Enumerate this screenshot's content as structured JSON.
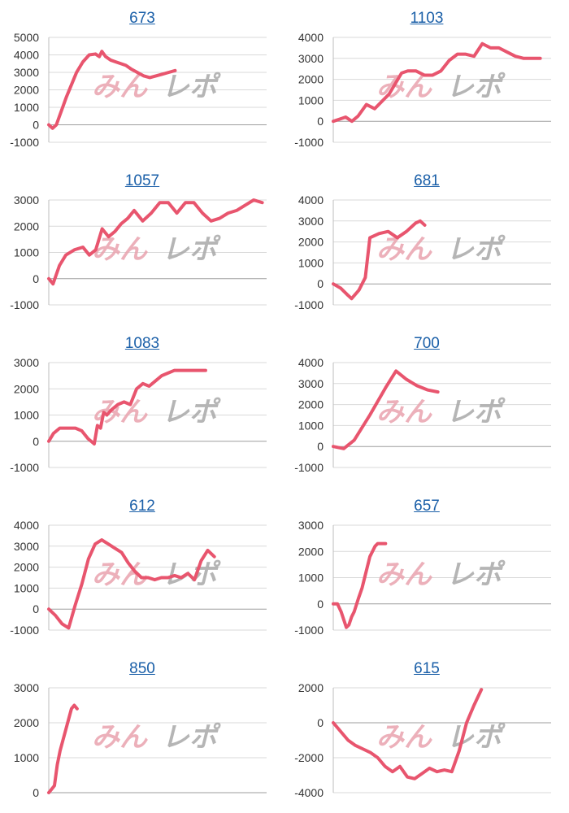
{
  "colors": {
    "line": "#e8556e",
    "grid": "#d9d9d9",
    "axis": "#bdbdbd",
    "title": "#1a5fa8",
    "watermark_pink": "#e9a3ae",
    "watermark_gray": "#a9a9a9"
  },
  "watermark": {
    "part1": "みん",
    "part2": "レポ"
  },
  "chart_data": [
    {
      "type": "line",
      "title": "673",
      "ylim": [
        -1000,
        5000
      ],
      "yticks": [
        5000,
        4000,
        3000,
        2000,
        1000,
        0,
        -1000
      ],
      "x": [
        0,
        3,
        6,
        10,
        14,
        18,
        22,
        27,
        32,
        37,
        40,
        42,
        45,
        49,
        53,
        57,
        61,
        65,
        70,
        75,
        80,
        85,
        90,
        95,
        100
      ],
      "values": [
        0,
        -200,
        0,
        800,
        1600,
        2300,
        3000,
        3600,
        4000,
        4050,
        3900,
        4200,
        3900,
        3700,
        3600,
        3500,
        3400,
        3200,
        3000,
        2800,
        2700,
        2800,
        2900,
        3000,
        3100
      ]
    },
    {
      "type": "line",
      "title": "1103",
      "ylim": [
        -1000,
        4000
      ],
      "yticks": [
        4000,
        3000,
        2000,
        1000,
        0,
        -1000
      ],
      "x": [
        0,
        3,
        6,
        9,
        12,
        16,
        20,
        24,
        27,
        30,
        33,
        36,
        40,
        44,
        48,
        52,
        56,
        60,
        64,
        68,
        72,
        76,
        80,
        84,
        88,
        92,
        96,
        100
      ],
      "values": [
        0,
        100,
        200,
        0,
        250,
        800,
        600,
        1000,
        1300,
        1800,
        2300,
        2400,
        2400,
        2200,
        2200,
        2400,
        2900,
        3200,
        3200,
        3100,
        3700,
        3500,
        3500,
        3300,
        3100,
        3000,
        3000,
        3000
      ]
    },
    {
      "type": "line",
      "title": "1057",
      "ylim": [
        -1000,
        3000
      ],
      "yticks": [
        3000,
        2000,
        1000,
        0,
        -1000
      ],
      "x": [
        0,
        2,
        5,
        8,
        12,
        16,
        19,
        22,
        25,
        28,
        31,
        34,
        37,
        40,
        44,
        48,
        52,
        56,
        60,
        64,
        68,
        72,
        76,
        80,
        84,
        88,
        92,
        96,
        100
      ],
      "values": [
        0,
        -200,
        500,
        900,
        1100,
        1200,
        900,
        1100,
        1900,
        1600,
        1800,
        2100,
        2300,
        2600,
        2200,
        2500,
        2900,
        2900,
        2500,
        2900,
        2900,
        2500,
        2200,
        2300,
        2500,
        2600,
        2800,
        3000,
        2900
      ]
    },
    {
      "type": "line",
      "title": "681",
      "ylim": [
        -1000,
        4000
      ],
      "yticks": [
        4000,
        3000,
        2000,
        1000,
        0,
        -1000
      ],
      "x": [
        0,
        8,
        15,
        20,
        28,
        35,
        40,
        50,
        60,
        70,
        80,
        90,
        95,
        100
      ],
      "values": [
        0,
        -200,
        -500,
        -700,
        -300,
        300,
        2200,
        2400,
        2500,
        2200,
        2500,
        2900,
        3000,
        2800
      ]
    },
    {
      "type": "line",
      "title": "1083",
      "ylim": [
        -1000,
        3000
      ],
      "yticks": [
        3000,
        2000,
        1000,
        0,
        -1000
      ],
      "x": [
        0,
        3,
        7,
        12,
        17,
        21,
        25,
        29,
        31,
        33,
        35,
        37,
        40,
        44,
        48,
        52,
        56,
        60,
        64,
        68,
        72,
        76,
        80,
        84,
        88,
        92,
        96,
        100
      ],
      "values": [
        0,
        300,
        500,
        500,
        500,
        400,
        100,
        -100,
        600,
        500,
        1100,
        1000,
        1200,
        1400,
        1500,
        1400,
        2000,
        2200,
        2100,
        2300,
        2500,
        2600,
        2700,
        2700,
        2700,
        2700,
        2700,
        2700
      ]
    },
    {
      "type": "line",
      "title": "700",
      "ylim": [
        -1000,
        4000
      ],
      "yticks": [
        4000,
        3000,
        2000,
        1000,
        0,
        -1000
      ],
      "x": [
        0,
        10,
        20,
        35,
        50,
        60,
        70,
        80,
        90,
        100
      ],
      "values": [
        0,
        -100,
        300,
        1500,
        2800,
        3600,
        3200,
        2900,
        2700,
        2600
      ]
    },
    {
      "type": "line",
      "title": "612",
      "ylim": [
        -1000,
        4000
      ],
      "yticks": [
        4000,
        3000,
        2000,
        1000,
        0,
        -1000
      ],
      "x": [
        0,
        4,
        8,
        12,
        16,
        20,
        24,
        28,
        32,
        36,
        40,
        44,
        48,
        52,
        56,
        60,
        64,
        68,
        72,
        76,
        80,
        84,
        88,
        92,
        96,
        100
      ],
      "values": [
        0,
        -300,
        -700,
        -900,
        200,
        1200,
        2400,
        3100,
        3300,
        3100,
        2900,
        2700,
        2200,
        1800,
        1500,
        1500,
        1400,
        1500,
        1500,
        1600,
        1500,
        1700,
        1400,
        2300,
        2800,
        2500
      ]
    },
    {
      "type": "line",
      "title": "657",
      "ylim": [
        -1000,
        3000
      ],
      "yticks": [
        3000,
        2000,
        1000,
        0,
        -1000
      ],
      "x": [
        0,
        8,
        15,
        20,
        25,
        30,
        35,
        40,
        48,
        55,
        60,
        65,
        70,
        75,
        80,
        85,
        90,
        95,
        100
      ],
      "values": [
        0,
        0,
        -300,
        -600,
        -900,
        -800,
        -500,
        -300,
        200,
        600,
        1000,
        1400,
        1800,
        2000,
        2200,
        2300,
        2300,
        2300,
        2300
      ]
    },
    {
      "type": "line",
      "title": "850",
      "ylim": [
        0,
        3000
      ],
      "yticks": [
        3000,
        2000,
        1000,
        0
      ],
      "x": [
        0,
        10,
        20,
        30,
        40,
        50,
        60,
        70,
        80,
        90,
        100
      ],
      "values": [
        0,
        100,
        200,
        800,
        1200,
        1500,
        1800,
        2100,
        2400,
        2500,
        2400
      ]
    },
    {
      "type": "line",
      "title": "615",
      "ylim": [
        -4000,
        2000
      ],
      "yticks": [
        2000,
        0,
        -2000,
        -4000
      ],
      "x": [
        0,
        5,
        10,
        15,
        20,
        25,
        30,
        35,
        40,
        45,
        50,
        55,
        60,
        65,
        70,
        75,
        80,
        85,
        90,
        95,
        100
      ],
      "values": [
        0,
        -500,
        -1000,
        -1300,
        -1500,
        -1700,
        -2000,
        -2500,
        -2800,
        -2500,
        -3100,
        -3200,
        -2900,
        -2600,
        -2800,
        -2700,
        -2800,
        -1600,
        0,
        1000,
        1900
      ]
    }
  ]
}
